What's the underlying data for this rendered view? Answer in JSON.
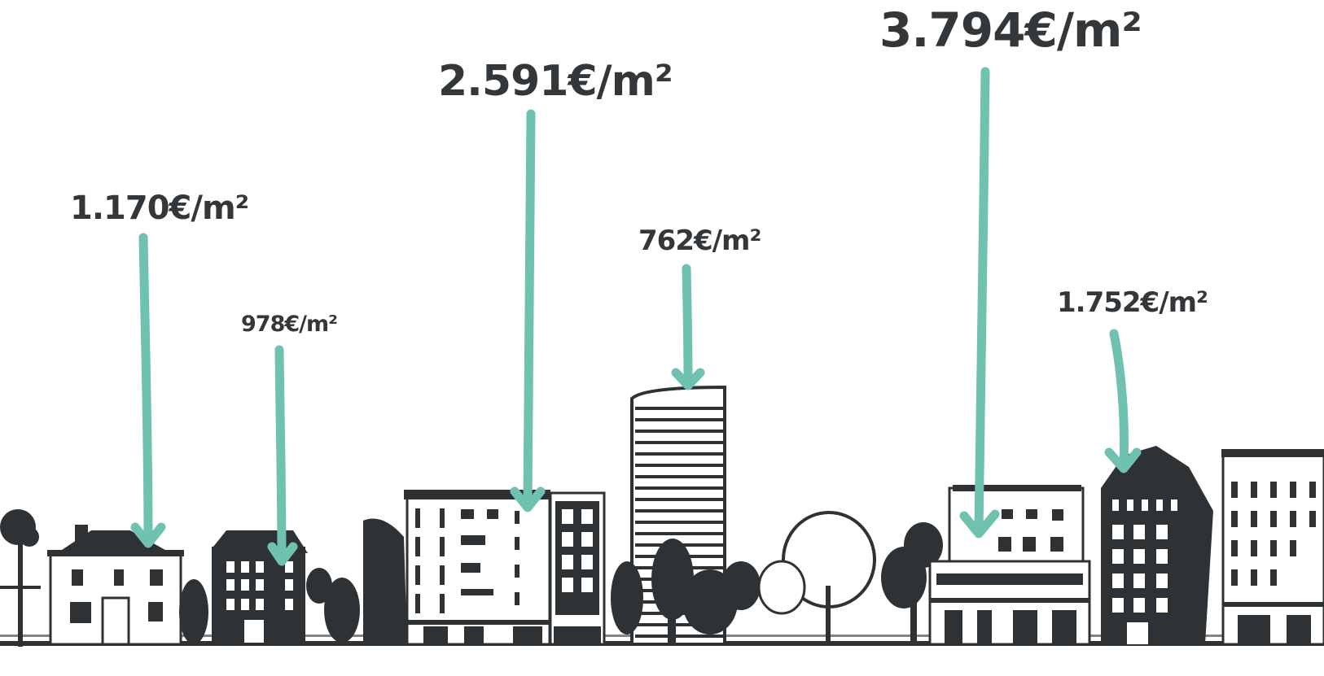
{
  "colors": {
    "arrow": "#6fc1b0",
    "ink": "#2f3235",
    "text": "#33373a",
    "background": "#ffffff"
  },
  "labels": [
    "1.170€/m²",
    "978€/m²",
    "2.591€/m²",
    "762€/m²",
    "3.794€/m²",
    "1.752€/m²"
  ]
}
